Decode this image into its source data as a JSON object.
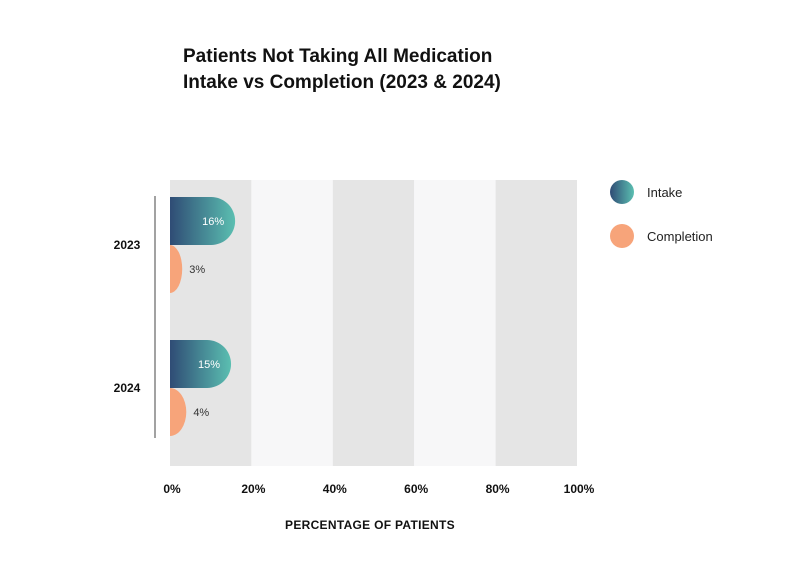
{
  "title_line1": "Patients Not Taking All Medication",
  "title_line2": "Intake vs Completion (2023 & 2024)",
  "chart_data": {
    "type": "bar",
    "orientation": "horizontal",
    "categories": [
      "2023",
      "2024"
    ],
    "series": [
      {
        "name": "Intake",
        "values": [
          16,
          15
        ],
        "labels": [
          "16%",
          "15%"
        ]
      },
      {
        "name": "Completion",
        "values": [
          3,
          4
        ],
        "labels": [
          "3%",
          "4%"
        ]
      }
    ],
    "xlim": [
      0,
      100
    ],
    "xticks": [
      0,
      20,
      40,
      60,
      80,
      100
    ],
    "xtick_labels": [
      "0%",
      "20%",
      "40%",
      "60%",
      "80%",
      "100%"
    ],
    "xlabel": "PERCENTAGE OF PATIENTS",
    "ylabel": "",
    "legend_position": "right"
  },
  "colors": {
    "intake_start": "#2f4c75",
    "intake_end": "#5bbfb1",
    "completion": "#f7a47a",
    "band_dark": "#e5e5e5",
    "band_light": "#f7f7f8"
  }
}
